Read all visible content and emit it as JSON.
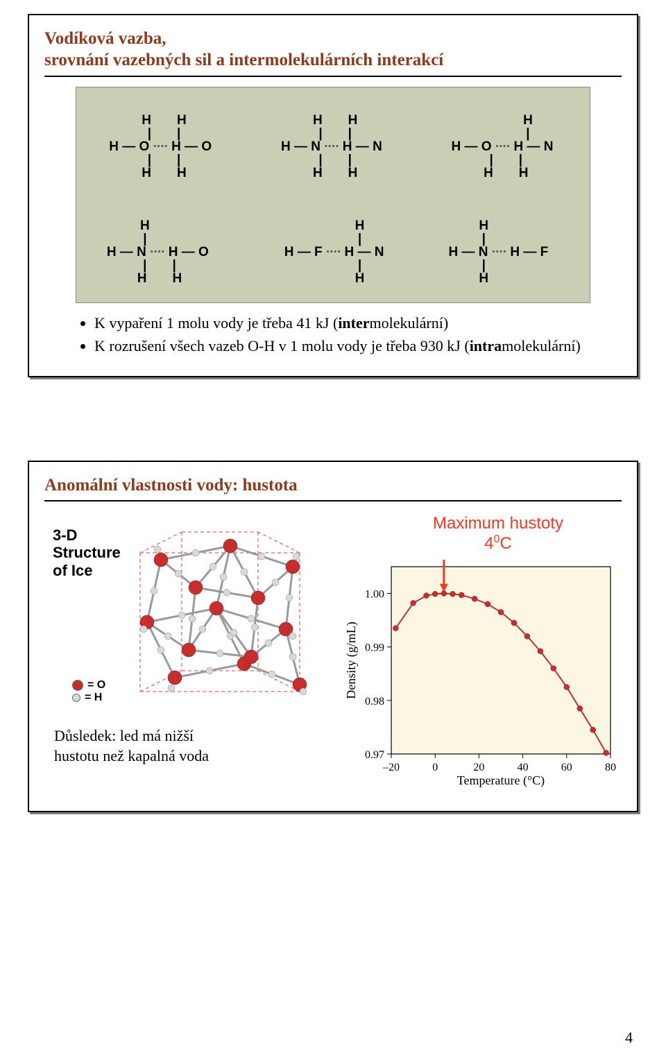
{
  "page_number": "4",
  "panel1": {
    "title_line1": "Vodíková vazba,",
    "title_line2": "srovnání vazebných sil a intermolekulárních interakcí",
    "title_color": "#8b3a1a",
    "title_fontsize": 25,
    "figure": {
      "bg_color": "#c9cfb5",
      "border_color": "#8a8a8a",
      "atom_font": "Arial",
      "atom_fontsize": 19,
      "dot_color": "#555555",
      "molecules_row1": [
        "    H       H   \n    |       |   \nH — O ··· H — O \n    |       |   \n    H       H   ",
        "    H       H   \n    |       |   \nH — N ··· H — N \n    |       |   \n    H       H   ",
        "                H   \n                |   \nH — O ··· H — N \n    |       |   \n    H       H   "
      ],
      "molecules_row2": [
        "    H               \n    |               \nH — N ··· H — O    \n    |       |       \n    H       H       ",
        "                H   \n                |   \nH — F ··· H — N \n                |   \n                H   ",
        "    H               \n    |               \nH — N ··· H — F   \n    |               \n    H               "
      ]
    },
    "bullets": [
      {
        "pre": "K vypaření 1 molu vody je třeba 41 kJ (",
        "bold": "inter",
        "post": "molekulární)"
      },
      {
        "pre": "K rozrušení všech vazeb O-H v 1 molu vody je třeba 930 kJ (",
        "bold": "intra",
        "post": "molekulární)"
      }
    ],
    "bullet_fontsize": 22
  },
  "panel2": {
    "title": "Anomální vlastnosti vody: hustota",
    "title_color": "#8b3a1a",
    "title_fontsize": 25,
    "ice_structure": {
      "label_line1": "3-D",
      "label_line2": "Structure",
      "label_line3": "of Ice",
      "label_fontsize": 22,
      "legend_o": "= O",
      "legend_h": "= H",
      "oxygen_color": "#c62e2e",
      "hydrogen_color": "#d9d9d9",
      "hbond_dash_color": "#e57f7f",
      "bond_color": "#9a9a9a"
    },
    "consequence_line1": "Důsledek: led má nižší",
    "consequence_line2": "hustotu než kapalná voda",
    "max_label_line1": "Maximum hustoty",
    "max_label_line2_pre": "4",
    "max_label_line2_sup": "0",
    "max_label_line2_post": "C",
    "max_label_color": "#ef3a1f",
    "arrow_color": "#ef3a1f",
    "chart": {
      "type": "line",
      "xlabel": "Temperature (°C)",
      "ylabel": "Density (g/mL)",
      "label_fontsize": 18,
      "tick_fontsize": 16,
      "xlim": [
        -20,
        80
      ],
      "ylim": [
        0.97,
        1.005
      ],
      "xticks": [
        -20,
        0,
        20,
        40,
        60,
        80
      ],
      "yticks": [
        0.97,
        0.98,
        0.99,
        1.0
      ],
      "ytick_labels": [
        "0.97",
        "0.98",
        "0.99",
        "1.00"
      ],
      "plot_bg_color": "#fdf6e3",
      "axes_color": "#000000",
      "line_color": "#c62e2e",
      "marker_color": "#c62e2e",
      "marker_radius": 4,
      "line_width": 2,
      "data": [
        {
          "x": -18,
          "y": 0.9935
        },
        {
          "x": -10,
          "y": 0.9982
        },
        {
          "x": -4,
          "y": 0.9996
        },
        {
          "x": 0,
          "y": 0.9999
        },
        {
          "x": 4,
          "y": 1.0
        },
        {
          "x": 8,
          "y": 0.9999
        },
        {
          "x": 12,
          "y": 0.9997
        },
        {
          "x": 18,
          "y": 0.999
        },
        {
          "x": 24,
          "y": 0.998
        },
        {
          "x": 30,
          "y": 0.9965
        },
        {
          "x": 36,
          "y": 0.9945
        },
        {
          "x": 42,
          "y": 0.992
        },
        {
          "x": 48,
          "y": 0.9892
        },
        {
          "x": 54,
          "y": 0.986
        },
        {
          "x": 60,
          "y": 0.9825
        },
        {
          "x": 66,
          "y": 0.9785
        },
        {
          "x": 72,
          "y": 0.9745
        },
        {
          "x": 78,
          "y": 0.9702
        }
      ]
    }
  }
}
